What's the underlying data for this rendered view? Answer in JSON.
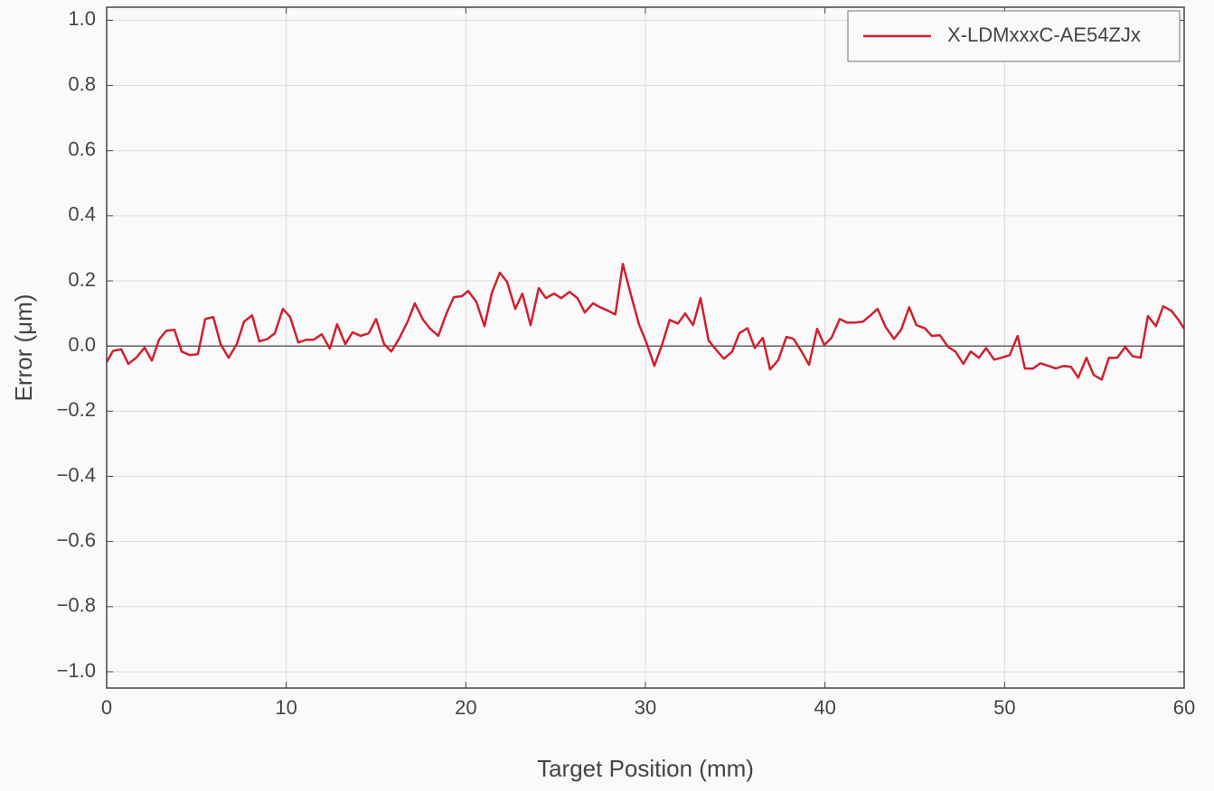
{
  "chart_data": {
    "type": "line",
    "xlabel": "Target Position (mm)",
    "ylabel": "Error (μm)",
    "x": [
      0,
      0.35,
      0.81,
      1.21,
      1.66,
      2.11,
      2.52,
      2.92,
      3.32,
      3.77,
      4.18,
      4.63,
      5.08,
      5.49,
      5.94,
      6.34,
      6.79,
      7.25,
      7.65,
      8.1,
      8.5,
      8.96,
      9.36,
      9.81,
      10.22,
      10.67,
      11.12,
      11.52,
      11.98,
      12.43,
      12.83,
      13.29,
      13.69,
      14.14,
      14.59,
      15.0,
      15.45,
      15.85,
      16.31,
      16.76,
      17.16,
      17.61,
      18.02,
      18.47,
      18.92,
      19.33,
      19.78,
      20.13,
      20.58,
      21.04,
      21.44,
      21.89,
      22.3,
      22.75,
      23.15,
      23.6,
      24.06,
      24.46,
      24.91,
      25.31,
      25.77,
      26.22,
      26.62,
      27.08,
      27.48,
      27.93,
      28.33,
      28.74,
      29.19,
      29.64,
      30.05,
      30.5,
      30.95,
      31.35,
      31.81,
      32.21,
      32.66,
      33.07,
      33.52,
      33.97,
      34.37,
      34.83,
      35.23,
      35.68,
      36.09,
      36.54,
      36.94,
      37.39,
      37.85,
      38.25,
      38.7,
      39.11,
      39.56,
      39.96,
      40.36,
      40.82,
      41.22,
      41.67,
      42.12,
      42.53,
      42.93,
      43.38,
      43.84,
      44.24,
      44.69,
      45.09,
      45.55,
      45.95,
      46.4,
      46.86,
      47.26,
      47.71,
      48.11,
      48.57,
      48.97,
      49.42,
      49.82,
      50.28,
      50.73,
      51.13,
      51.59,
      51.99,
      52.44,
      52.85,
      53.3,
      53.7,
      54.1,
      54.56,
      54.96,
      55.41,
      55.81,
      56.27,
      56.72,
      57.12,
      57.57,
      57.98,
      58.43,
      58.83,
      59.29,
      59.69,
      60
    ],
    "series": [
      {
        "name": "X-LDMxxxC-AE54ZJx",
        "color": "#d0202e",
        "values": [
          -0.05,
          -0.015,
          -0.01,
          -0.055,
          -0.035,
          -0.005,
          -0.045,
          0.02,
          0.047,
          0.05,
          -0.017,
          -0.028,
          -0.025,
          0.083,
          0.089,
          0.006,
          -0.036,
          0.006,
          0.075,
          0.094,
          0.014,
          0.022,
          0.039,
          0.114,
          0.089,
          0.011,
          0.019,
          0.019,
          0.036,
          -0.008,
          0.067,
          0.006,
          0.042,
          0.031,
          0.039,
          0.083,
          0.006,
          -0.017,
          0.025,
          0.075,
          0.131,
          0.081,
          0.053,
          0.031,
          0.1,
          0.15,
          0.153,
          0.169,
          0.136,
          0.061,
          0.161,
          0.225,
          0.197,
          0.114,
          0.161,
          0.064,
          0.178,
          0.147,
          0.161,
          0.147,
          0.166,
          0.147,
          0.103,
          0.131,
          0.119,
          0.108,
          0.097,
          0.252,
          0.158,
          0.067,
          0.011,
          -0.061,
          0.008,
          0.08,
          0.069,
          0.1,
          0.064,
          0.147,
          0.017,
          -0.014,
          -0.039,
          -0.017,
          0.039,
          0.055,
          -0.006,
          0.025,
          -0.072,
          -0.044,
          0.028,
          0.022,
          -0.017,
          -0.058,
          0.053,
          0.003,
          0.025,
          0.083,
          0.072,
          0.072,
          0.075,
          0.094,
          0.114,
          0.058,
          0.022,
          0.05,
          0.119,
          0.064,
          0.055,
          0.031,
          0.033,
          -0.003,
          -0.017,
          -0.055,
          -0.017,
          -0.036,
          -0.006,
          -0.042,
          -0.036,
          -0.028,
          0.031,
          -0.069,
          -0.069,
          -0.053,
          -0.061,
          -0.069,
          -0.061,
          -0.064,
          -0.097,
          -0.036,
          -0.089,
          -0.103,
          -0.036,
          -0.036,
          -0.003,
          -0.031,
          -0.036,
          0.092,
          0.061,
          0.122,
          0.108,
          0.08,
          0.053
        ]
      }
    ],
    "xlim": [
      0,
      60
    ],
    "xticks": [
      0,
      10,
      20,
      30,
      40,
      50,
      60
    ],
    "ylim": [
      -1.05,
      1.04
    ],
    "yticks": [
      {
        "value": -1.0,
        "label": "−1.0"
      },
      {
        "value": -0.8,
        "label": "−0.8"
      },
      {
        "value": -0.6,
        "label": "−0.6"
      },
      {
        "value": -0.4,
        "label": "−0.4"
      },
      {
        "value": -0.2,
        "label": "−0.2"
      },
      {
        "value": 0,
        "label": "0.0"
      },
      {
        "value": 0.2,
        "label": "0.2"
      },
      {
        "value": 0.4,
        "label": "0.4"
      },
      {
        "value": 0.6,
        "label": "0.6"
      },
      {
        "value": 0.8,
        "label": "0.8"
      },
      {
        "value": 1.0,
        "label": "1.0"
      }
    ],
    "reference_line": 0,
    "grid": true,
    "legend": "upper right"
  }
}
